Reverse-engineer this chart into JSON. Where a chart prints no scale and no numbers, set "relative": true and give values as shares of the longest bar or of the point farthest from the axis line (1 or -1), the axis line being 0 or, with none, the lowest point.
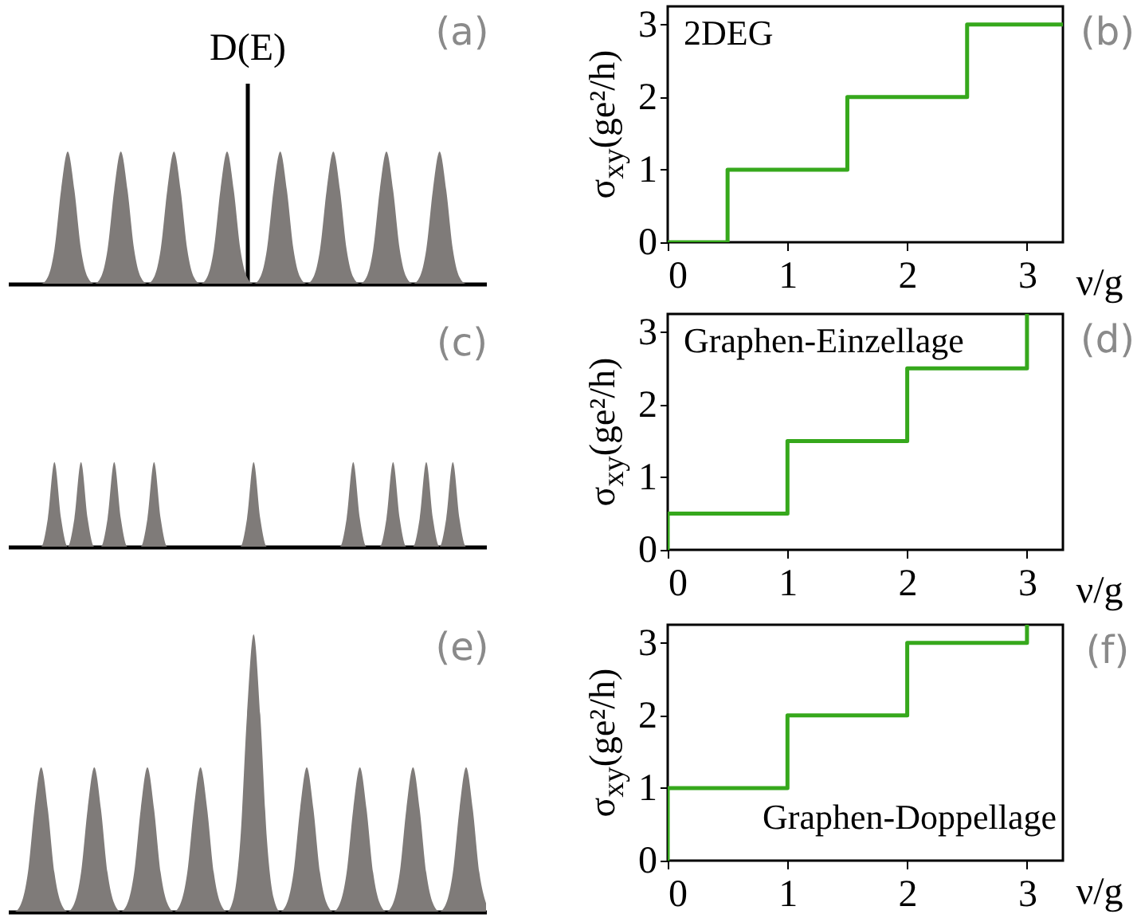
{
  "chart_data": [
    {
      "type": "area",
      "relative": true,
      "ylabel": "D(E)",
      "annotations": [
        "(a)"
      ],
      "color": "#7f7b79",
      "categories": [
        null,
        null,
        null,
        null,
        null,
        null,
        null,
        null,
        null,
        null,
        null,
        null,
        null,
        null,
        null,
        null,
        null,
        null,
        null,
        null,
        null,
        null,
        null,
        null,
        null,
        null,
        null,
        null,
        null,
        null,
        null,
        null,
        null,
        null,
        null,
        null,
        null,
        null,
        null,
        null,
        null,
        null,
        null,
        null,
        null,
        null,
        null,
        null,
        null,
        null,
        null,
        null,
        null,
        null,
        null,
        null,
        null,
        null,
        null,
        null,
        null,
        null,
        null,
        null,
        null,
        null,
        null,
        null,
        null,
        null,
        null,
        null,
        null
      ],
      "values": [
        0,
        0,
        0,
        0,
        0,
        0,
        0.05,
        0.26,
        0.71,
        1,
        0.71,
        0.26,
        0.05,
        0,
        0.05,
        0.26,
        0.71,
        1,
        0.71,
        0.26,
        0.05,
        0,
        0.05,
        0.26,
        0.71,
        1,
        0.71,
        0.26,
        0.05,
        0,
        0.05,
        0.26,
        0.71,
        1,
        0.71,
        0.26,
        0.05,
        0,
        0.05,
        0.26,
        0.71,
        1,
        0.71,
        0.26,
        0.05,
        0,
        0.05,
        0.26,
        0.71,
        1,
        0.71,
        0.26,
        0.05,
        0,
        0.05,
        0.26,
        0.71,
        1,
        0.71,
        0.26,
        0.05,
        0,
        0.05,
        0.26,
        0.71,
        1,
        0.71,
        0.26,
        0.05,
        0,
        0,
        0,
        0
      ]
    },
    {
      "type": "step",
      "xlabel": "ν/g",
      "ylabel": "σ$_{xy}$(ge²/h)",
      "annotations": [
        "(b)",
        "2DEG"
      ],
      "color": "#36a81c",
      "xlim": [
        0,
        3.3
      ],
      "xticks": [
        0,
        1,
        2,
        3
      ],
      "ylim": [
        0,
        3.25
      ],
      "yticks": [
        0,
        1,
        2,
        3
      ],
      "x": [
        0,
        0.5,
        1.5,
        2.5,
        3.3
      ],
      "values": [
        0,
        1,
        2,
        3,
        3
      ]
    },
    {
      "type": "area",
      "relative": true,
      "annotations": [
        "(c)"
      ],
      "color": "#7f7b79",
      "categories": [
        null,
        null,
        null,
        null,
        null,
        null,
        null,
        null,
        null,
        null,
        null,
        null,
        null,
        null,
        null,
        null,
        null,
        null,
        null,
        null,
        null,
        null,
        null,
        null,
        null,
        null,
        null,
        null,
        null,
        null,
        null,
        null,
        null,
        null,
        null,
        null,
        null,
        null,
        null,
        null,
        null,
        null,
        null,
        null,
        null,
        null,
        null,
        null,
        null,
        null,
        null,
        null,
        null,
        null,
        null,
        null,
        null,
        null,
        null,
        null,
        null,
        null,
        null,
        null,
        null,
        null,
        null,
        null,
        null,
        null,
        null,
        null,
        null
      ],
      "values": [
        0,
        0,
        0,
        0,
        0,
        0,
        0.33,
        1,
        0.33,
        0,
        0.33,
        1,
        0.33,
        0,
        0,
        0.33,
        1,
        0.33,
        0,
        0,
        0,
        0.33,
        1,
        0.33,
        0,
        0,
        0,
        0,
        0,
        0,
        0,
        0,
        0,
        0,
        0,
        0,
        0.33,
        1,
        0.33,
        0,
        0,
        0,
        0,
        0,
        0,
        0,
        0,
        0,
        0,
        0,
        0,
        0.33,
        1,
        0.33,
        0,
        0,
        0,
        0.33,
        1,
        0.33,
        0,
        0,
        0.33,
        1,
        0.33,
        0,
        0.33,
        1,
        0.33,
        0,
        0,
        0,
        0
      ]
    },
    {
      "type": "step",
      "xlabel": "ν/g",
      "ylabel": "σ$_{xy}$(ge²/h)",
      "annotations": [
        "(d)",
        "Graphen-Einzellage"
      ],
      "color": "#36a81c",
      "xlim": [
        0,
        3.3
      ],
      "xticks": [
        0,
        1,
        2,
        3
      ],
      "ylim": [
        0,
        3.25
      ],
      "yticks": [
        0,
        1,
        2,
        3
      ],
      "x": [
        0,
        0,
        1,
        2,
        3
      ],
      "values": [
        0,
        0.5,
        1.5,
        2.5,
        3.25
      ]
    },
    {
      "type": "area",
      "relative": true,
      "annotations": [
        "(e)"
      ],
      "color": "#7f7b79",
      "categories": [
        null,
        null,
        null,
        null,
        null,
        null,
        null,
        null,
        null,
        null,
        null,
        null,
        null,
        null,
        null,
        null,
        null,
        null,
        null,
        null,
        null,
        null,
        null,
        null,
        null,
        null,
        null,
        null,
        null,
        null,
        null,
        null,
        null,
        null,
        null,
        null,
        null,
        null,
        null,
        null,
        null,
        null,
        null,
        null,
        null,
        null,
        null,
        null,
        null,
        null,
        null,
        null,
        null,
        null,
        null,
        null,
        null,
        null,
        null,
        null,
        null,
        null,
        null,
        null,
        null,
        null,
        null,
        null,
        null,
        null,
        null,
        null,
        null
      ],
      "values": [
        0,
        0,
        0.03,
        0.14,
        0.37,
        0.52,
        0.37,
        0.14,
        0.03,
        0,
        0.03,
        0.14,
        0.37,
        0.52,
        0.37,
        0.14,
        0.03,
        0,
        0.03,
        0.14,
        0.37,
        0.52,
        0.37,
        0.14,
        0.03,
        0,
        0.03,
        0.14,
        0.37,
        0.52,
        0.37,
        0.14,
        0.03,
        0,
        0.05,
        0.26,
        0.71,
        1,
        0.71,
        0.26,
        0.05,
        0,
        0.03,
        0.14,
        0.37,
        0.52,
        0.37,
        0.14,
        0.03,
        0,
        0.03,
        0.14,
        0.37,
        0.52,
        0.37,
        0.14,
        0.03,
        0,
        0.03,
        0.14,
        0.37,
        0.52,
        0.37,
        0.14,
        0.03,
        0,
        0.03,
        0.14,
        0.37,
        0.52,
        0.37,
        0.14,
        0.03
      ]
    },
    {
      "type": "step",
      "xlabel": "ν/g",
      "ylabel": "σ$_{xy}$(ge²/h)",
      "annotations": [
        "(f)",
        "Graphen-Doppellage"
      ],
      "color": "#36a81c",
      "xlim": [
        0,
        3.3
      ],
      "xticks": [
        0,
        1,
        2,
        3
      ],
      "ylim": [
        0,
        3.25
      ],
      "yticks": [
        0,
        1,
        2,
        3
      ],
      "x": [
        0,
        0,
        1,
        2,
        3
      ],
      "values": [
        0,
        1,
        2,
        3,
        3.25
      ]
    }
  ]
}
